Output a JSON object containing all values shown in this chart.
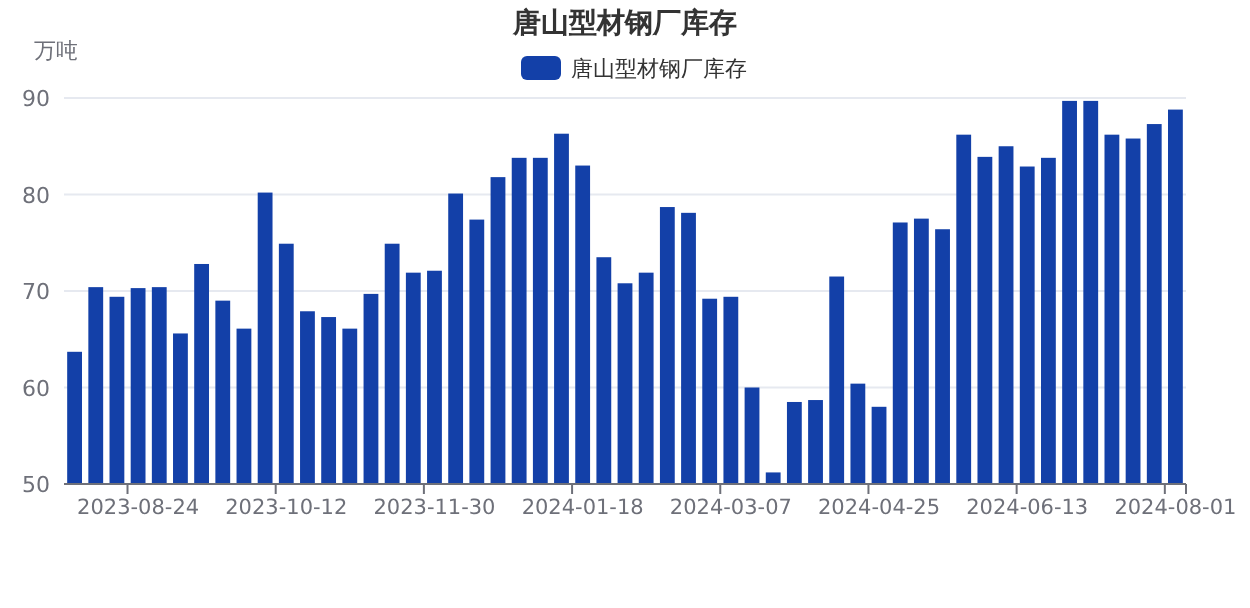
{
  "chart_data": {
    "type": "bar",
    "title": "唐山型材钢厂库存",
    "ylabel": "万吨",
    "categories": [
      null,
      null,
      null,
      "2023-08-24",
      null,
      null,
      null,
      null,
      null,
      null,
      "2023-10-12",
      null,
      null,
      null,
      null,
      null,
      null,
      "2023-11-30",
      null,
      null,
      null,
      null,
      null,
      null,
      "2024-01-18",
      null,
      null,
      null,
      null,
      null,
      null,
      "2024-03-07",
      null,
      null,
      null,
      null,
      null,
      null,
      "2024-04-25",
      null,
      null,
      null,
      null,
      null,
      null,
      "2024-06-13",
      null,
      null,
      null,
      null,
      null,
      null,
      "2024-08-01"
    ],
    "series": [
      {
        "name": "唐山型材钢厂库存",
        "color": "#1340a8",
        "values": [
          63.7,
          70.4,
          69.4,
          70.3,
          70.4,
          65.6,
          72.8,
          69.0,
          66.1,
          80.2,
          74.9,
          67.9,
          67.3,
          66.1,
          69.7,
          74.9,
          71.9,
          72.1,
          80.1,
          77.4,
          81.8,
          83.8,
          83.8,
          86.3,
          83.0,
          73.5,
          70.8,
          71.9,
          78.7,
          78.1,
          69.2,
          69.4,
          60.0,
          51.2,
          58.5,
          58.7,
          71.5,
          60.4,
          58.0,
          77.1,
          77.5,
          76.4,
          86.2,
          83.9,
          85.0,
          82.9,
          83.8,
          89.7,
          89.7,
          86.2,
          85.8,
          87.3,
          88.8
        ]
      }
    ],
    "ylim": [
      50,
      90
    ],
    "yticks": [
      50,
      60,
      70,
      80,
      90
    ],
    "grid": "y",
    "legend": "top"
  }
}
